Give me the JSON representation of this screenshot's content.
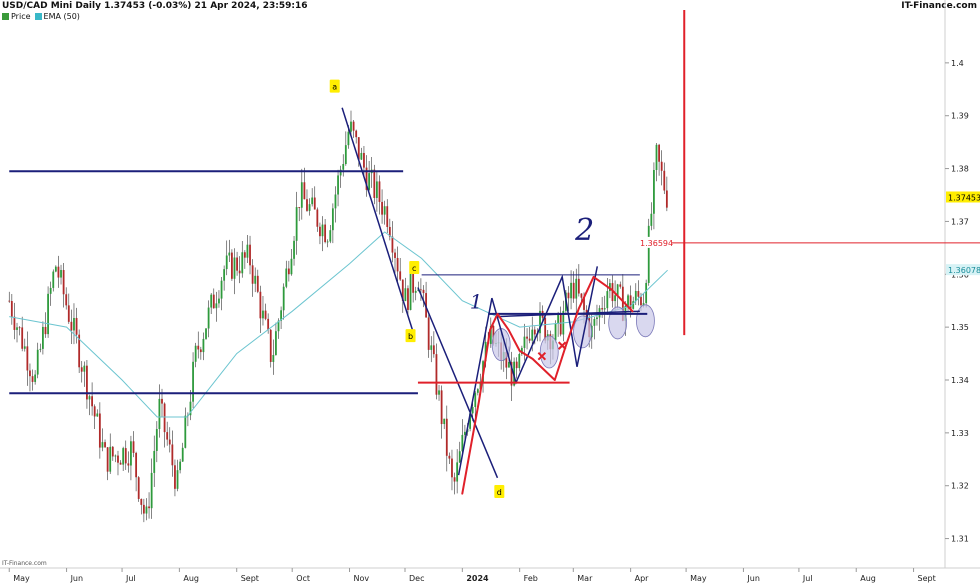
{
  "header": {
    "title": "USD/CAD Mini Daily 1.37453 (-0.03%) 21 Apr 2024, 23:59:16",
    "brand": "IT-Finance.com",
    "footer": "IT-Finance.com"
  },
  "legend": [
    {
      "label": "Price",
      "color": "#3a9a3a"
    },
    {
      "label": "EMA (50)",
      "color": "#39b8c8"
    }
  ],
  "colors": {
    "up": "#2e9a3c",
    "down": "#b02a2a",
    "wick": "#333333",
    "ema": "#6cc5d0",
    "navy": "#1b1f7a",
    "red": "#e0202a",
    "ellipse_fill": "#c9c8e8",
    "label_bg": "#ffee00",
    "current_tag": "#ffee00",
    "ema_tag": "#d6f2f5"
  },
  "chart_data": {
    "type": "candlestick",
    "title": "USD/CAD Mini Daily",
    "last_price": 1.37453,
    "change_pct": "-0.03%",
    "timestamp": "21 Apr 2024, 23:59:16",
    "ylim": [
      1.305,
      1.41
    ],
    "yticks": [
      "1.31",
      "1.32",
      "1.33",
      "1.34",
      "1.35",
      "1.36",
      "1.37",
      "1.38",
      "1.39",
      "1.4"
    ],
    "x_months": [
      "May",
      "Jun",
      "Jul",
      "Aug",
      "Sept",
      "Oct",
      "Nov",
      "Dec",
      "2024",
      "Feb",
      "Mar",
      "Apr",
      "May",
      "Jun",
      "Jul",
      "Aug",
      "Sept"
    ],
    "price_tags": [
      {
        "text": "1.37453",
        "value": 1.37453,
        "kind": "current"
      },
      {
        "text": "1.36078",
        "value": 1.36078,
        "kind": "ema"
      },
      {
        "text": "1.36594",
        "value": 1.36594,
        "kind": "level"
      }
    ],
    "price_path": [
      {
        "x": "2023-05-01",
        "y": 1.355
      },
      {
        "x": "2023-05-15",
        "y": 1.34
      },
      {
        "x": "2023-05-26",
        "y": 1.362
      },
      {
        "x": "2023-06-08",
        "y": 1.345
      },
      {
        "x": "2023-06-22",
        "y": 1.325
      },
      {
        "x": "2023-07-06",
        "y": 1.327
      },
      {
        "x": "2023-07-14",
        "y": 1.313
      },
      {
        "x": "2023-07-21",
        "y": 1.335
      },
      {
        "x": "2023-07-31",
        "y": 1.32
      },
      {
        "x": "2023-08-10",
        "y": 1.345
      },
      {
        "x": "2023-08-25",
        "y": 1.361
      },
      {
        "x": "2023-09-08",
        "y": 1.363
      },
      {
        "x": "2023-09-20",
        "y": 1.344
      },
      {
        "x": "2023-10-05",
        "y": 1.375
      },
      {
        "x": "2023-10-20",
        "y": 1.368
      },
      {
        "x": "2023-11-01",
        "y": 1.388
      },
      {
        "x": "2023-11-10",
        "y": 1.379
      },
      {
        "x": "2023-11-22",
        "y": 1.371
      },
      {
        "x": "2023-12-01",
        "y": 1.355
      },
      {
        "x": "2023-12-08",
        "y": 1.36
      },
      {
        "x": "2023-12-20",
        "y": 1.335
      },
      {
        "x": "2023-12-27",
        "y": 1.319
      },
      {
        "x": "2024-01-05",
        "y": 1.335
      },
      {
        "x": "2024-01-16",
        "y": 1.348
      },
      {
        "x": "2024-01-30",
        "y": 1.34
      },
      {
        "x": "2024-02-08",
        "y": 1.352
      },
      {
        "x": "2024-02-20",
        "y": 1.348
      },
      {
        "x": "2024-03-01",
        "y": 1.358
      },
      {
        "x": "2024-03-11",
        "y": 1.349
      },
      {
        "x": "2024-03-20",
        "y": 1.358
      },
      {
        "x": "2024-03-28",
        "y": 1.354
      },
      {
        "x": "2024-04-08",
        "y": 1.356
      },
      {
        "x": "2024-04-15",
        "y": 1.382
      },
      {
        "x": "2024-04-21",
        "y": 1.3745
      }
    ],
    "ema_path": [
      {
        "x": "2023-05-01",
        "y": 1.352
      },
      {
        "x": "2023-06-01",
        "y": 1.35
      },
      {
        "x": "2023-07-01",
        "y": 1.34
      },
      {
        "x": "2023-07-20",
        "y": 1.333
      },
      {
        "x": "2023-08-05",
        "y": 1.333
      },
      {
        "x": "2023-09-01",
        "y": 1.345
      },
      {
        "x": "2023-10-01",
        "y": 1.353
      },
      {
        "x": "2023-11-01",
        "y": 1.362
      },
      {
        "x": "2023-11-20",
        "y": 1.368
      },
      {
        "x": "2023-12-10",
        "y": 1.363
      },
      {
        "x": "2024-01-01",
        "y": 1.355
      },
      {
        "x": "2024-02-01",
        "y": 1.35
      },
      {
        "x": "2024-03-01",
        "y": 1.351
      },
      {
        "x": "2024-04-01",
        "y": 1.354
      },
      {
        "x": "2024-04-21",
        "y": 1.36078
      }
    ],
    "drawings": {
      "hlines_navy": [
        {
          "from": "2023-05-01",
          "to": "2023-11-30",
          "y": 1.3795
        },
        {
          "from": "2023-05-01",
          "to": "2023-12-08",
          "y": 1.3375
        },
        {
          "from": "2023-12-10",
          "to": "2024-04-06",
          "y": 1.3599
        },
        {
          "from": "2024-01-15",
          "to": "2024-04-10",
          "y": 1.3525
        }
      ],
      "trend_navy": [
        {
          "from": {
            "x": "2023-10-28",
            "y": 1.3915
          },
          "to": {
            "x": "2023-12-05",
            "y": 1.3495
          }
        },
        {
          "from": {
            "x": "2023-12-08",
            "y": 1.3575
          },
          "to": {
            "x": "2024-01-20",
            "y": 1.3215
          }
        },
        {
          "from": {
            "x": "2024-01-20",
            "y": 1.352
          },
          "to": {
            "x": "2024-04-06",
            "y": 1.353
          }
        }
      ],
      "zigzag_navy": [
        {
          "x": "2023-12-30",
          "y": 1.322
        },
        {
          "x": "2024-01-17",
          "y": 1.3555
        },
        {
          "x": "2024-01-30",
          "y": 1.3395
        },
        {
          "x": "2024-02-24",
          "y": 1.3595
        },
        {
          "x": "2024-03-03",
          "y": 1.3425
        },
        {
          "x": "2024-03-14",
          "y": 1.3615
        }
      ],
      "hline_red_short": {
        "from": "2023-12-08",
        "to": "2024-02-28",
        "y": 1.3395
      },
      "hline_red_level": {
        "from": "2024-04-07",
        "to": "2024-05-31",
        "y": 1.36594
      },
      "vline_red": {
        "x": "2024-04-30",
        "y_from": 1.41,
        "y_to": 1.3485
      },
      "red_freehand": [
        {
          "x": "2024-01-01",
          "y": 1.3185
        },
        {
          "x": "2024-01-10",
          "y": 1.336
        },
        {
          "x": "2024-01-16",
          "y": 1.3495
        },
        {
          "x": "2024-01-20",
          "y": 1.3525
        },
        {
          "x": "2024-01-26",
          "y": 1.3495
        },
        {
          "x": "2024-02-01",
          "y": 1.3455
        },
        {
          "x": "2024-02-08",
          "y": 1.344
        },
        {
          "x": "2024-02-20",
          "y": 1.34
        },
        {
          "x": "2024-02-26",
          "y": 1.3465
        },
        {
          "x": "2024-03-04",
          "y": 1.3535
        },
        {
          "x": "2024-03-12",
          "y": 1.3595
        },
        {
          "x": "2024-03-22",
          "y": 1.357
        },
        {
          "x": "2024-04-02",
          "y": 1.353
        }
      ],
      "ellipses": [
        {
          "x": "2024-01-22",
          "y": 1.3467
        },
        {
          "x": "2024-02-17",
          "y": 1.3453
        },
        {
          "x": "2024-03-06",
          "y": 1.3491
        },
        {
          "x": "2024-03-25",
          "y": 1.3508
        },
        {
          "x": "2024-04-09",
          "y": 1.3512
        }
      ],
      "red_x_marks": [
        {
          "x": "2024-02-13",
          "y": 1.3445
        },
        {
          "x": "2024-02-24",
          "y": 1.3465
        }
      ],
      "labels": [
        {
          "text": "a",
          "x": "2023-10-24",
          "y": 1.3955
        },
        {
          "text": "b",
          "x": "2023-12-04",
          "y": 1.3483
        },
        {
          "text": "c",
          "x": "2023-12-06",
          "y": 1.3612
        },
        {
          "text": "d",
          "x": "2024-01-21",
          "y": 1.3188
        }
      ],
      "handwritten": [
        {
          "text": "1",
          "x": "2024-01-05",
          "y": 1.3535
        },
        {
          "text": "2",
          "x": "2024-03-02",
          "y": 1.3665
        }
      ]
    }
  }
}
